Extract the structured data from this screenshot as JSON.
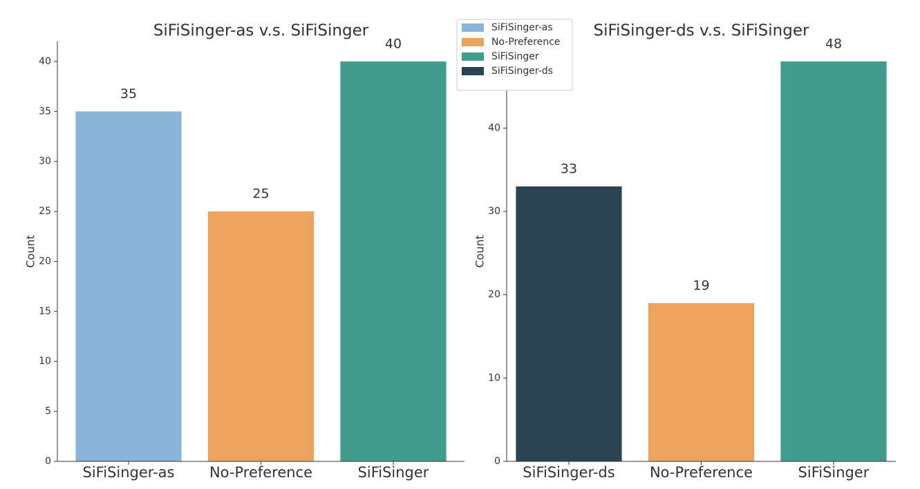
{
  "chart_data": [
    {
      "type": "bar",
      "title": "SiFiSinger-as v.s. SiFiSinger",
      "ylabel": "Count",
      "categories": [
        "SiFiSinger-as",
        "No-Preference",
        "SiFiSinger"
      ],
      "values": [
        35,
        25,
        40
      ],
      "colors": [
        "#8ab4d8",
        "#eda35e",
        "#419c8d"
      ],
      "ylim": [
        0,
        42
      ],
      "yticks": [
        0,
        5,
        10,
        15,
        20,
        25,
        30,
        35,
        40
      ]
    },
    {
      "type": "bar",
      "title": "SiFiSinger-ds v.s. SiFiSinger",
      "ylabel": "Count",
      "categories": [
        "SiFiSinger-ds",
        "No-Preference",
        "SiFiSinger"
      ],
      "values": [
        33,
        19,
        48
      ],
      "colors": [
        "#2a4551",
        "#eda35e",
        "#419c8d"
      ],
      "ylim": [
        0,
        50.4
      ],
      "yticks": [
        0,
        10,
        20,
        30,
        40
      ]
    }
  ],
  "legend": {
    "entries": [
      {
        "name": "SiFiSinger-as",
        "color": "#8ab4d8"
      },
      {
        "name": "No-Preference",
        "color": "#eda35e"
      },
      {
        "name": "SiFiSinger",
        "color": "#419c8d"
      },
      {
        "name": "SiFiSinger-ds",
        "color": "#2a4551"
      }
    ]
  }
}
